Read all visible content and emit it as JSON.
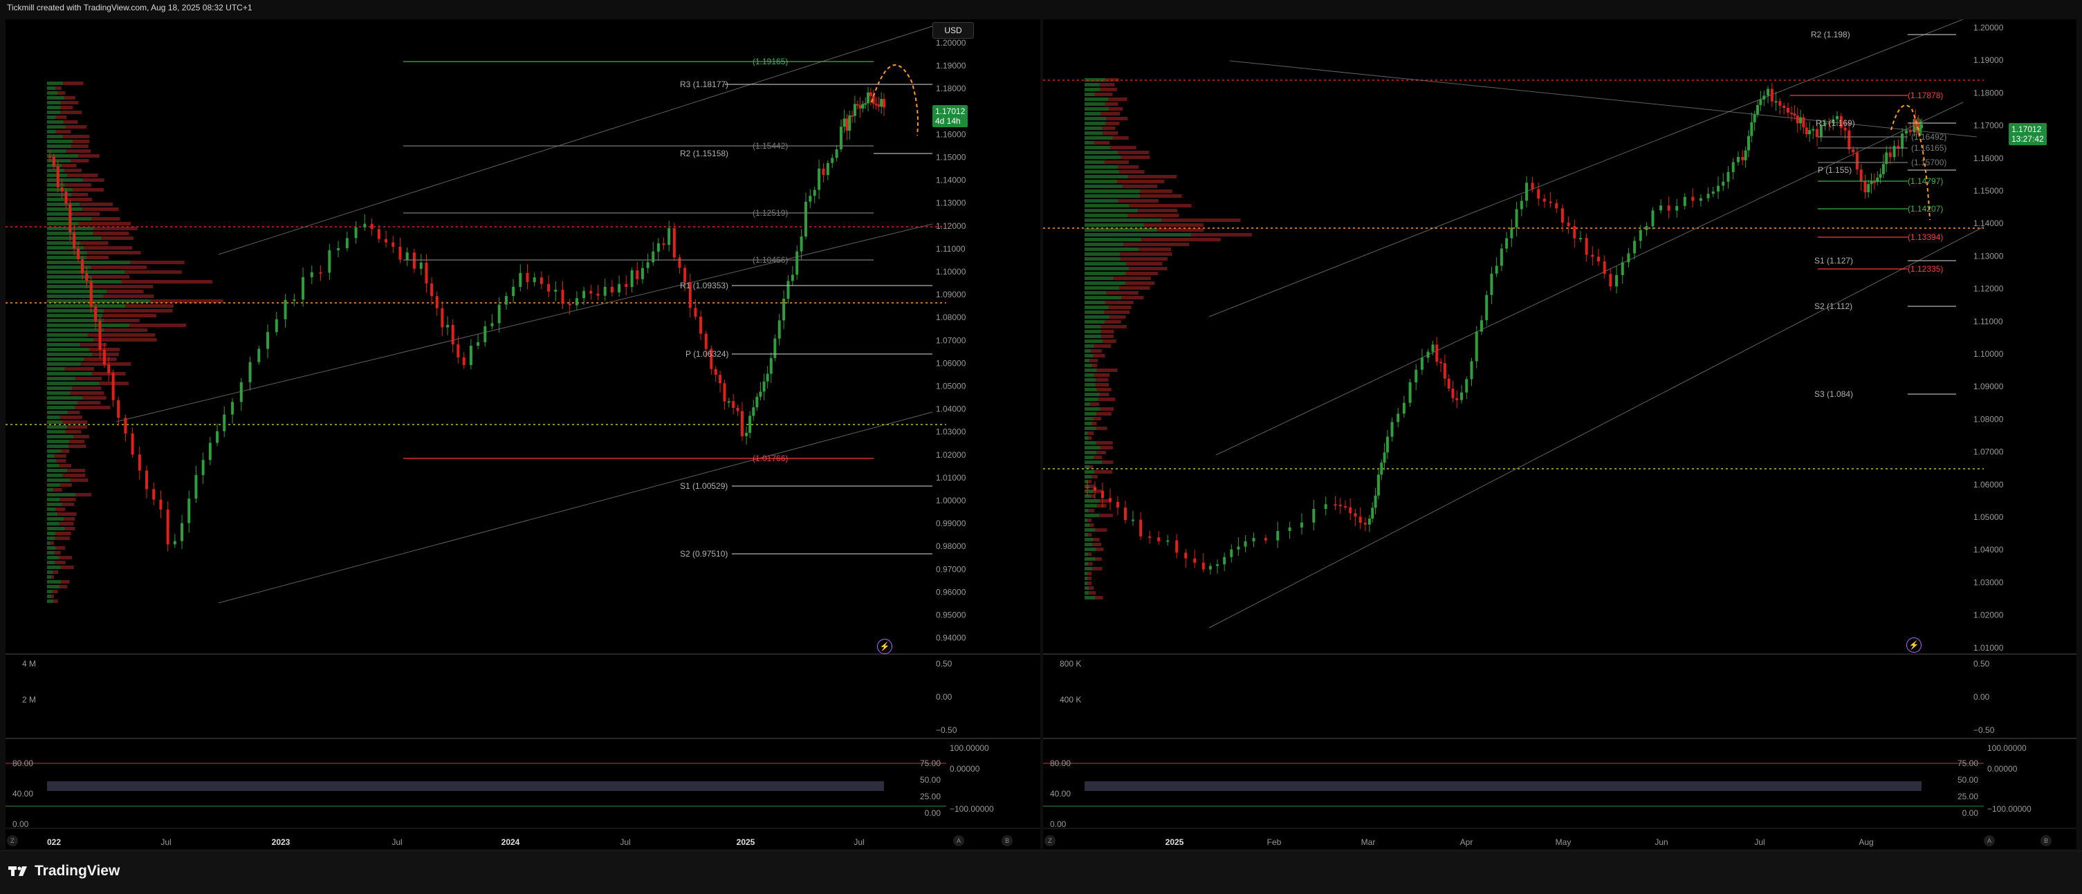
{
  "header": {
    "text": "Tickmill created with TradingView.com, Aug 18, 2025 08:32 UTC+1"
  },
  "footer": {
    "brand": "TradingView"
  },
  "colors": {
    "up": "#2e9e3e",
    "down": "#e0211b",
    "pivot_line": "#b0b0b0",
    "support": "#ff3b3b",
    "resistance_green": "#39b54a",
    "projection": "#ff9a1f",
    "panel_bg": "#000000"
  },
  "left": {
    "currency": "USD",
    "price_tag": {
      "value": "1.17012",
      "sub": "4d 14h"
    },
    "price_axis": [
      "1.20000",
      "1.19000",
      "1.18000",
      "1.17000",
      "1.16000",
      "1.15000",
      "1.14000",
      "1.13000",
      "1.12000",
      "1.11000",
      "1.10000",
      "1.09000",
      "1.08000",
      "1.07000",
      "1.06000",
      "1.05000",
      "1.04000",
      "1.03000",
      "1.02000",
      "1.01000",
      "1.00000",
      "0.99000",
      "0.98000",
      "0.97000",
      "0.96000",
      "0.95000",
      "0.94000"
    ],
    "level_labels": [
      "(1.19165)",
      "R3 (1.18177)",
      "(1.15442)",
      "R2 (1.15158)",
      "(1.12519)",
      "(1.10466)",
      "R1 (1.09353)",
      "P (1.06324)",
      "(1.01766)",
      "S1 (1.00529)",
      "S2 (0.97510)"
    ],
    "volume_axis": [
      "4 M",
      "2 M"
    ],
    "osc_left_axis": [
      "80.00",
      "40.00",
      "0.00"
    ],
    "osc_right_axis": [
      "75.00",
      "50.00",
      "25.00",
      "0.00"
    ],
    "osc_right2_axis": [
      "100.00000",
      "0.00000",
      "−100.00000"
    ],
    "vol_right_axis": [
      "0.50",
      "0.00",
      "−0.50"
    ],
    "time_axis": [
      "022",
      "Jul",
      "2023",
      "Jul",
      "2024",
      "Jul",
      "2025",
      "Jul"
    ]
  },
  "right": {
    "price_tag": {
      "value": "1.17012",
      "sub": "13:27:42"
    },
    "price_axis": [
      "1.20000",
      "1.19000",
      "1.18000",
      "1.17000",
      "1.16000",
      "1.15000",
      "1.14000",
      "1.13000",
      "1.12000",
      "1.11000",
      "1.10000",
      "1.09000",
      "1.08000",
      "1.07000",
      "1.06000",
      "1.05000",
      "1.04000",
      "1.03000",
      "1.02000",
      "1.01000"
    ],
    "level_labels": [
      "R2 (1.198)",
      "(1.17878)",
      "R1 (1.169)",
      "(1.16492)",
      "(1.16165)",
      "(1.15700)",
      "P (1.155)",
      "(1.14797)",
      "(1.14207)",
      "(1.13394)",
      "S1 (1.127)",
      "(1.12335)",
      "S2 (1.112)",
      "S3 (1.084)"
    ],
    "volume_axis": [
      "800 K",
      "400 K"
    ],
    "osc_left_axis": [
      "80.00",
      "40.00",
      "0.00"
    ],
    "osc_right_axis": [
      "75.00",
      "50.00",
      "25.00",
      "0.00"
    ],
    "osc_right2_axis": [
      "100.00000",
      "0.00000",
      "−100.00000"
    ],
    "vol_right_axis": [
      "0.50",
      "0.00",
      "−0.50"
    ],
    "time_axis": [
      "2025",
      "Feb",
      "Mar",
      "Apr",
      "May",
      "Jun",
      "Jul",
      "Aug"
    ]
  },
  "buttons": {
    "z": "Z",
    "a": "A",
    "b": "B",
    "lightning": "⚡"
  }
}
